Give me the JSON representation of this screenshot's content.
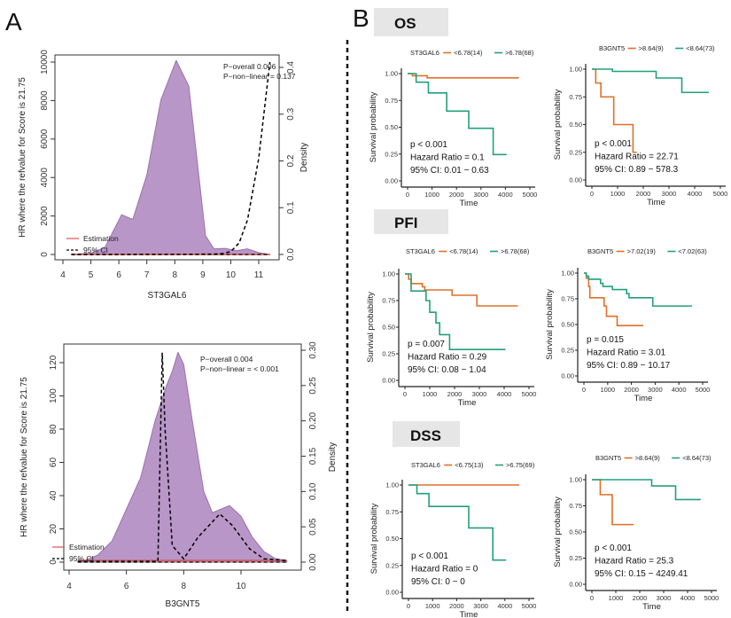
{
  "panel_labels": {
    "a": "A",
    "b": "B"
  },
  "sections": [
    {
      "title": "OS"
    },
    {
      "title": "PFI"
    },
    {
      "title": "DSS"
    }
  ],
  "colors": {
    "density_fill": "#b996c8",
    "density_stroke": "#9a72ae",
    "estimation": "#d9534f",
    "ci": "#000000",
    "group_high_orange": "#e0702a",
    "group_green": "#23a07a"
  },
  "chart_data": [
    {
      "type": "area",
      "xlabel": "ST3GAL6",
      "ylabel": "HR where the refvalue for Score is 21.75",
      "y2label": "Density",
      "xlim": [
        4,
        11.5
      ],
      "xticks": [
        4,
        5,
        6,
        7,
        8,
        9,
        10,
        11
      ],
      "ylim": [
        0,
        10000
      ],
      "yticks": [
        0,
        2000,
        4000,
        6000,
        8000,
        10000
      ],
      "y2lim": [
        0,
        0.4
      ],
      "y2ticks": [
        "0.0",
        "0.1",
        "0.2",
        "0.3",
        "0.4"
      ],
      "annotations": [
        "P−overall 0.006",
        "P−non−linear = 0.137"
      ],
      "legend": [
        "Estimation",
        "95% CI"
      ],
      "density": {
        "x": [
          4.3,
          5,
          5.5,
          5.8,
          6.1,
          6.5,
          7,
          7.5,
          8.05,
          8.5,
          8.8,
          9.1,
          9.4,
          9.8,
          10.2,
          10.6,
          11,
          11.4
        ],
        "y": [
          0,
          0.003,
          0.015,
          0.05,
          0.085,
          0.075,
          0.17,
          0.33,
          0.415,
          0.36,
          0.2,
          0.04,
          0.012,
          0.013,
          0.008,
          0.012,
          0.004,
          0
        ]
      },
      "hr_ci_upper": {
        "x": [
          4.3,
          6,
          8,
          9.4,
          9.7,
          10,
          10.3,
          10.6,
          11,
          11.4
        ],
        "y": [
          1,
          2,
          5,
          20,
          50,
          150,
          600,
          1800,
          5000,
          10000
        ]
      },
      "hr_estimation": {
        "x": [
          4.3,
          11.4
        ],
        "y": [
          1,
          1
        ]
      }
    },
    {
      "type": "area",
      "xlabel": "B3GNT5",
      "ylabel": "HR where the refvalue for Score is 21.75",
      "y2label": "Density",
      "xlim": [
        4,
        11.8
      ],
      "xticks": [
        4,
        6,
        8,
        10
      ],
      "ylim": [
        0,
        120
      ],
      "yticks": [
        0,
        20,
        40,
        60,
        80,
        100,
        120
      ],
      "y2lim": [
        0,
        0.3
      ],
      "y2ticks": [
        "0.00",
        "0.05",
        "0.10",
        "0.15",
        "0.20",
        "0.25",
        "0.30"
      ],
      "annotations": [
        "P−overall 0.004",
        "P−non−linear = < 0.001"
      ],
      "legend": [
        "Estimation",
        "95% CI"
      ],
      "density": {
        "x": [
          4.4,
          5,
          5.5,
          6,
          6.5,
          7,
          7.4,
          7.6,
          7.8,
          8,
          8.3,
          8.7,
          9,
          9.3,
          9.6,
          10,
          10.4,
          10.8,
          11.2,
          11.6
        ],
        "y": [
          0,
          0.01,
          0.03,
          0.075,
          0.12,
          0.2,
          0.25,
          0.27,
          0.297,
          0.28,
          0.2,
          0.1,
          0.07,
          0.075,
          0.08,
          0.065,
          0.035,
          0.015,
          0.005,
          0.002
        ]
      },
      "hr_ci_upper": {
        "x": [
          4.3,
          7.1,
          7.25,
          7.35,
          7.6,
          8.0,
          8.5,
          9.26,
          9.7,
          10.3,
          10.8,
          11.6
        ],
        "y": [
          0.5,
          0.5,
          126,
          80,
          10,
          2,
          15,
          29,
          22,
          8,
          2,
          1
        ]
      },
      "hr_estimation": {
        "x": [
          4.3,
          11.6
        ],
        "y": [
          1,
          1
        ]
      }
    },
    {
      "type": "line",
      "section": "OS",
      "legend_title": "ST3GAL6",
      "groups": [
        "<6.78(14)",
        ">6.78(68)"
      ],
      "xlabel": "Time",
      "ylabel": "Survival probability",
      "xlim": [
        0,
        5000
      ],
      "xticks": [
        "0",
        "1000",
        "2000",
        "3000",
        "4000",
        "5000"
      ],
      "ylim": [
        0,
        1
      ],
      "yticks": [
        "0.00",
        "0.25",
        "0.50",
        "0.75",
        "1.00"
      ],
      "stats": [
        "p < 0.001",
        "Hazard Ratio = 0.1",
        "95% CI: 0.01 − 0.63"
      ],
      "series": [
        {
          "name": "<6.78(14)",
          "color": "#e0702a",
          "x": [
            0,
            200,
            800,
            4550
          ],
          "y": [
            1,
            0.98,
            0.96,
            0.96
          ]
        },
        {
          "name": ">6.78(68)",
          "color": "#23a07a",
          "x": [
            0,
            350,
            850,
            1600,
            2500,
            3500,
            4050
          ],
          "y": [
            1,
            0.92,
            0.82,
            0.65,
            0.49,
            0.245,
            0.245
          ]
        }
      ]
    },
    {
      "type": "line",
      "section": "OS",
      "legend_title": "B3GNT5",
      "groups": [
        ">8.64(9)",
        "<8.64(73)"
      ],
      "xlabel": "Time",
      "ylabel": "Survival probability",
      "xlim": [
        0,
        5000
      ],
      "xticks": [
        "0",
        "1000",
        "2000",
        "3000",
        "4000",
        "5000"
      ],
      "ylim": [
        0,
        1
      ],
      "yticks": [
        "0.00",
        "0.25",
        "0.50",
        "0.75",
        "1.00"
      ],
      "stats": [
        "p < 0.001",
        "Hazard Ratio = 22.71",
        "95% CI: 0.89 − 578.3"
      ],
      "series": [
        {
          "name": ">8.64(9)",
          "color": "#e0702a",
          "x": [
            0,
            150,
            350,
            850,
            1600,
            1750
          ],
          "y": [
            1,
            0.875,
            0.75,
            0.5,
            0.25,
            0.25
          ]
        },
        {
          "name": "<8.64(73)",
          "color": "#23a07a",
          "x": [
            0,
            800,
            2500,
            3500,
            4550
          ],
          "y": [
            1,
            0.98,
            0.92,
            0.79,
            0.79
          ]
        }
      ]
    },
    {
      "type": "line",
      "section": "PFI",
      "legend_title": "ST3GAL6",
      "groups": [
        "<6.78(14)",
        ">6.78(68)"
      ],
      "xlabel": "Time",
      "ylabel": "Survival probability",
      "xlim": [
        0,
        5000
      ],
      "xticks": [
        "0",
        "1000",
        "2000",
        "3000",
        "4000",
        "5000"
      ],
      "ylim": [
        0,
        1
      ],
      "yticks": [
        "0.00",
        "0.25",
        "0.50",
        "0.75",
        "1.00"
      ],
      "stats": [
        "p = 0.007",
        "Hazard Ratio = 0.29",
        "95% CI: 0.08 − 1.04"
      ],
      "series": [
        {
          "name": "<6.78(14)",
          "color": "#e0702a",
          "x": [
            0,
            150,
            250,
            700,
            800,
            1900,
            2900,
            4550
          ],
          "y": [
            1,
            0.95,
            0.91,
            0.88,
            0.85,
            0.8,
            0.7,
            0.7
          ]
        },
        {
          "name": ">6.78(68)",
          "color": "#23a07a",
          "x": [
            0,
            250,
            850,
            1000,
            1250,
            1400,
            1800,
            4050
          ],
          "y": [
            1,
            0.84,
            0.75,
            0.64,
            0.54,
            0.43,
            0.29,
            0.29
          ]
        }
      ]
    },
    {
      "type": "line",
      "section": "PFI",
      "legend_title": "B3GNT5",
      "groups": [
        ">7.02(19)",
        "<7.02(63)"
      ],
      "xlabel": "Time",
      "ylabel": "Survival probability",
      "xlim": [
        0,
        5000
      ],
      "xticks": [
        "0",
        "1000",
        "2000",
        "3000",
        "4000",
        "5000"
      ],
      "ylim": [
        0,
        1
      ],
      "yticks": [
        "0.00",
        "0.25",
        "0.50",
        "0.75",
        "1.00"
      ],
      "stats": [
        "p = 0.015",
        "Hazard Ratio = 3.01",
        "95% CI: 0.89 − 10.17"
      ],
      "series": [
        {
          "name": ">7.02(19)",
          "color": "#e0702a",
          "x": [
            0,
            100,
            200,
            250,
            850,
            950,
            1400,
            2500
          ],
          "y": [
            1,
            0.95,
            0.87,
            0.76,
            0.68,
            0.58,
            0.49,
            0.49
          ]
        },
        {
          "name": "<7.02(63)",
          "color": "#23a07a",
          "x": [
            0,
            100,
            200,
            700,
            800,
            1200,
            1800,
            1900,
            2900,
            4550
          ],
          "y": [
            1,
            0.97,
            0.94,
            0.9,
            0.87,
            0.84,
            0.8,
            0.76,
            0.68,
            0.68
          ]
        }
      ]
    },
    {
      "type": "line",
      "section": "DSS",
      "legend_title": "ST3GAL6",
      "groups": [
        "<6.75(13)",
        ">6.75(69)"
      ],
      "xlabel": "Time",
      "ylabel": "Survival probability",
      "xlim": [
        0,
        5000
      ],
      "xticks": [
        "0",
        "1000",
        "2000",
        "3000",
        "4000",
        "5000"
      ],
      "ylim": [
        0,
        1
      ],
      "yticks": [
        "0.00",
        "0.25",
        "0.50",
        "0.75",
        "1.00"
      ],
      "stats": [
        "p < 0.001",
        "Hazard Ratio = 0",
        "95% CI: 0 − 0"
      ],
      "series": [
        {
          "name": "<6.75(13)",
          "color": "#e0702a",
          "x": [
            0,
            4600
          ],
          "y": [
            1,
            1
          ]
        },
        {
          "name": ">6.75(69)",
          "color": "#23a07a",
          "x": [
            0,
            350,
            850,
            2500,
            3500,
            4050
          ],
          "y": [
            1,
            0.92,
            0.8,
            0.6,
            0.3,
            0.3
          ]
        }
      ]
    },
    {
      "type": "line",
      "section": "DSS",
      "legend_title": "B3GNT5",
      "groups": [
        ">8.64(9)",
        "<8.64(73)"
      ],
      "xlabel": "Time",
      "ylabel": "Survival probability",
      "xlim": [
        0,
        5000
      ],
      "xticks": [
        "0",
        "1000",
        "2000",
        "3000",
        "4000",
        "5000"
      ],
      "ylim": [
        0,
        1
      ],
      "yticks": [
        "0.00",
        "0.25",
        "0.50",
        "0.75",
        "1.00"
      ],
      "stats": [
        "p < 0.001",
        "Hazard Ratio = 25.3",
        "95% CI: 0.15 − 4249.41"
      ],
      "series": [
        {
          "name": ">8.64(9)",
          "color": "#e0702a",
          "x": [
            0,
            350,
            850,
            1750
          ],
          "y": [
            1,
            0.857,
            0.571,
            0.571
          ]
        },
        {
          "name": "<8.64(73)",
          "color": "#23a07a",
          "x": [
            0,
            2500,
            3500,
            4550
          ],
          "y": [
            1,
            0.94,
            0.81,
            0.81
          ]
        }
      ]
    }
  ]
}
